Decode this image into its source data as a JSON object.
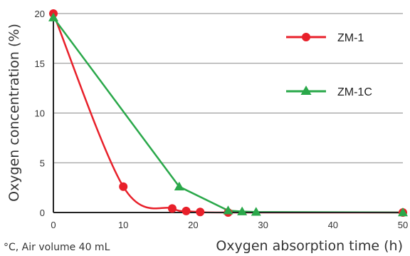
{
  "chart_data": {
    "type": "line",
    "title": "",
    "xlabel": "Oxygen absorption time (h)",
    "ylabel": "Oxygen concentration (%)",
    "xlim": [
      0,
      50
    ],
    "ylim": [
      0,
      20
    ],
    "x_ticks": [
      0,
      10,
      20,
      30,
      40,
      50
    ],
    "y_ticks": [
      0,
      5,
      10,
      15,
      20
    ],
    "grid": "horizontal",
    "legend_position": "right",
    "footnote": "°C, Air volume 40 mL",
    "series": [
      {
        "name": "ZM-1",
        "color": "#e8202a",
        "marker": "circle",
        "x": [
          0,
          10,
          17,
          19,
          21,
          25,
          50
        ],
        "y": [
          20,
          2.6,
          0.4,
          0.15,
          0.05,
          0,
          0
        ]
      },
      {
        "name": "ZM-1C",
        "color": "#2aa84a",
        "marker": "triangle",
        "x": [
          0,
          18,
          25,
          27,
          29,
          50
        ],
        "y": [
          19.6,
          2.6,
          0.2,
          0.1,
          0.05,
          0
        ]
      }
    ]
  }
}
